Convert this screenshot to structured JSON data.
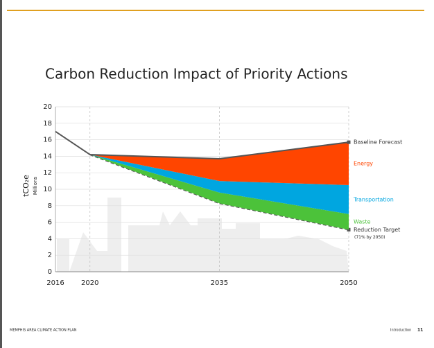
{
  "chart_data": {
    "type": "area",
    "title": "Carbon Reduction Impact of Priority Actions",
    "ylabel": "tCO₂e",
    "ylabel_unit": "Millions",
    "xlim": [
      2016,
      2050
    ],
    "xticks": [
      2016,
      2020,
      2035,
      2050
    ],
    "ylim": [
      0,
      20
    ],
    "yticks": [
      0,
      2,
      4,
      6,
      8,
      10,
      12,
      14,
      16,
      18,
      20
    ],
    "grid": true,
    "series": [
      {
        "name": "Reduction Target",
        "note": "(71% by 2050)",
        "color": "#555555",
        "dashed": true,
        "x": [
          2020,
          2035,
          2050
        ],
        "values": [
          14.2,
          8.3,
          5.1
        ]
      },
      {
        "name": "Waste",
        "color": "#4cc23a",
        "area": true,
        "x": [
          2020,
          2035,
          2050
        ],
        "values": [
          0,
          1.3,
          1.9
        ]
      },
      {
        "name": "Transportation",
        "color": "#00a6e0",
        "area": true,
        "x": [
          2020,
          2035,
          2050
        ],
        "values": [
          0,
          1.4,
          3.5
        ]
      },
      {
        "name": "Energy",
        "color": "#ff4500",
        "area": true,
        "x": [
          2020,
          2035,
          2050
        ],
        "values": [
          0,
          2.7,
          5.2
        ]
      },
      {
        "name": "Baseline Forecast",
        "color": "#555555",
        "x": [
          2016,
          2020,
          2035,
          2050
        ],
        "values": [
          17.0,
          14.2,
          13.7,
          15.7
        ]
      }
    ]
  },
  "footer": {
    "left": "MEMPHIS AREA CLIMATE ACTION PLAN",
    "section": "Introduction",
    "page": "11"
  }
}
